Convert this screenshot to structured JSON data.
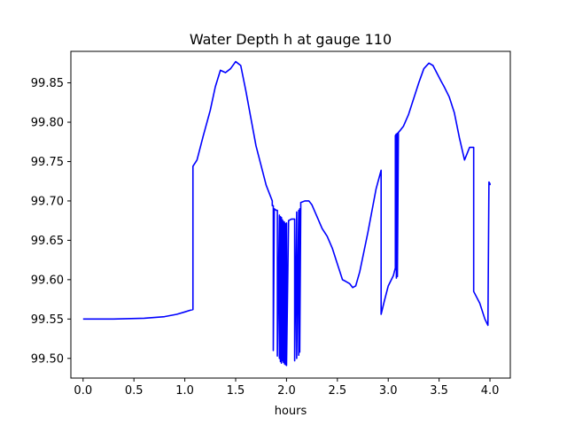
{
  "chart_data": {
    "type": "line",
    "title": "Water Depth h at gauge 110",
    "xlabel": "hours",
    "ylabel": "",
    "xlim": [
      -0.12,
      4.2
    ],
    "ylim": [
      99.475,
      99.89
    ],
    "grid": false,
    "xticks": [
      {
        "value": 0.0,
        "label": "0.0"
      },
      {
        "value": 0.5,
        "label": "0.5"
      },
      {
        "value": 1.0,
        "label": "1.0"
      },
      {
        "value": 1.5,
        "label": "1.5"
      },
      {
        "value": 2.0,
        "label": "2.0"
      },
      {
        "value": 2.5,
        "label": "2.5"
      },
      {
        "value": 3.0,
        "label": "3.0"
      },
      {
        "value": 3.5,
        "label": "3.5"
      },
      {
        "value": 4.0,
        "label": "4.0"
      }
    ],
    "yticks": [
      {
        "value": 99.5,
        "label": "99.50"
      },
      {
        "value": 99.55,
        "label": "99.55"
      },
      {
        "value": 99.6,
        "label": "99.60"
      },
      {
        "value": 99.65,
        "label": "99.65"
      },
      {
        "value": 99.7,
        "label": "99.70"
      },
      {
        "value": 99.75,
        "label": "99.75"
      },
      {
        "value": 99.8,
        "label": "99.80"
      },
      {
        "value": 99.85,
        "label": "99.85"
      }
    ],
    "series": [
      {
        "color": "#0000ff",
        "x": [
          0.0,
          0.3,
          0.6,
          0.8,
          0.92,
          1.0,
          1.05,
          1.08,
          1.08,
          1.12,
          1.18,
          1.25,
          1.3,
          1.35,
          1.4,
          1.45,
          1.5,
          1.55,
          1.6,
          1.7,
          1.8,
          1.86,
          1.86,
          1.87,
          1.87,
          1.88,
          1.9,
          1.91,
          1.91,
          1.93,
          1.93,
          1.94,
          1.94,
          1.95,
          1.95,
          1.96,
          1.96,
          1.97,
          1.97,
          1.98,
          1.98,
          1.99,
          1.99,
          2.0,
          2.0,
          2.02,
          2.02,
          2.05,
          2.08,
          2.08,
          2.1,
          2.1,
          2.12,
          2.12,
          2.13,
          2.13,
          2.14,
          2.14,
          2.18,
          2.22,
          2.25,
          2.3,
          2.35,
          2.4,
          2.45,
          2.5,
          2.55,
          2.58,
          2.62,
          2.65,
          2.68,
          2.72,
          2.8,
          2.88,
          2.93,
          2.93,
          2.96,
          3.0,
          3.05,
          3.07,
          3.07,
          3.08,
          3.08,
          3.09,
          3.09,
          3.1,
          3.1,
          3.12,
          3.15,
          3.2,
          3.25,
          3.3,
          3.35,
          3.4,
          3.44,
          3.48,
          3.52,
          3.55,
          3.6,
          3.65,
          3.7,
          3.75,
          3.8,
          3.84,
          3.84,
          3.9,
          3.95,
          3.98,
          3.98,
          3.99,
          4.0,
          4.0
        ],
        "y": [
          99.55,
          99.55,
          99.551,
          99.553,
          99.556,
          99.559,
          99.561,
          99.562,
          99.744,
          99.752,
          99.782,
          99.815,
          99.845,
          99.866,
          99.863,
          99.868,
          99.877,
          99.872,
          99.84,
          99.77,
          99.72,
          99.7,
          99.694,
          99.694,
          99.51,
          99.69,
          99.688,
          99.688,
          99.503,
          99.682,
          99.5,
          99.68,
          99.496,
          99.679,
          99.494,
          99.676,
          99.497,
          99.674,
          99.495,
          99.673,
          99.493,
          99.671,
          99.492,
          99.672,
          99.491,
          99.673,
          99.675,
          99.677,
          99.677,
          99.497,
          99.686,
          99.5,
          99.688,
          99.504,
          99.69,
          99.508,
          99.692,
          99.698,
          99.7,
          99.7,
          99.695,
          99.68,
          99.665,
          99.655,
          99.64,
          99.62,
          99.6,
          99.598,
          99.595,
          99.59,
          99.592,
          99.61,
          99.66,
          99.715,
          99.739,
          99.556,
          99.572,
          99.592,
          99.605,
          99.615,
          99.783,
          99.785,
          99.602,
          99.786,
          99.604,
          99.787,
          99.787,
          99.79,
          99.795,
          99.81,
          99.83,
          99.85,
          99.868,
          99.875,
          99.872,
          99.862,
          99.852,
          99.845,
          99.832,
          99.812,
          99.78,
          99.752,
          99.768,
          99.768,
          99.585,
          99.57,
          99.55,
          99.542,
          99.542,
          99.724,
          99.722,
          99.72
        ]
      }
    ]
  }
}
